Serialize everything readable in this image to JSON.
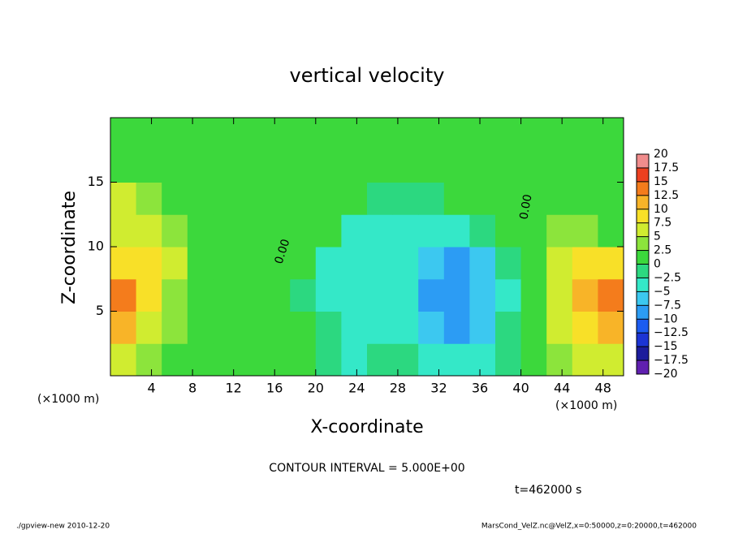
{
  "chart_data": {
    "type": "heatmap",
    "title": "vertical velocity",
    "x_label": "X-coordinate",
    "y_label": "Z-coordinate",
    "x_unit": "(×1000 m)",
    "contour_label": "0.00",
    "contour_interval": "CONTOUR INTERVAL = 5.000E+00",
    "time_label": "t=462000 s",
    "footer_left": "./gpview-new  2010-12-20",
    "footer_right": "MarsCond_VelZ.nc@VelZ,x=0:50000,z=0:20000,t=462000",
    "xlim": [
      0,
      50
    ],
    "ylim": [
      0,
      20
    ],
    "xticks": [
      4,
      8,
      12,
      16,
      20,
      24,
      28,
      32,
      36,
      40,
      44,
      48
    ],
    "yticks": [
      5,
      10,
      15
    ],
    "x": [
      1.25,
      3.75,
      6.25,
      8.75,
      11.25,
      13.75,
      16.25,
      18.75,
      21.25,
      23.75,
      26.25,
      28.75,
      31.25,
      33.75,
      36.25,
      38.75,
      41.25,
      43.75,
      46.25,
      48.75
    ],
    "y": [
      1.25,
      3.75,
      6.25,
      8.75,
      11.25,
      13.75,
      16.25,
      18.75
    ],
    "z": [
      [
        6,
        4,
        1,
        1,
        1,
        1,
        1,
        1,
        -1,
        -3,
        -2,
        -2,
        -4,
        -5,
        -4,
        -1,
        1,
        4,
        6,
        6
      ],
      [
        12,
        7,
        3,
        1,
        1,
        1,
        1,
        1,
        -2,
        -4,
        -4,
        -5,
        -7,
        -8,
        -6,
        -2,
        1,
        5,
        9,
        12
      ],
      [
        13,
        8,
        4,
        1,
        1,
        1,
        1,
        -1,
        -3,
        -4,
        -5,
        -5,
        -8,
        -9,
        -7,
        -3,
        2,
        7,
        12,
        14
      ],
      [
        9,
        8,
        5,
        1,
        1,
        1,
        1,
        1,
        -3,
        -5,
        -4,
        -4,
        -7,
        -9,
        -6,
        -2,
        2,
        6,
        9,
        8
      ],
      [
        7,
        6,
        4,
        1,
        1,
        1,
        1,
        1,
        1,
        -3,
        -3,
        -3,
        -4,
        -3,
        -2,
        1,
        1,
        3,
        3,
        2
      ],
      [
        5,
        4,
        2,
        1,
        1,
        1,
        1,
        1,
        1,
        1,
        -2,
        -2,
        -1,
        1,
        1,
        1,
        1,
        1,
        1,
        1
      ],
      [
        1,
        1,
        1,
        1,
        1,
        1,
        1,
        1,
        1,
        1,
        1,
        1,
        1,
        1,
        1,
        1,
        1,
        1,
        1,
        1
      ],
      [
        1,
        1,
        1,
        1,
        1,
        1,
        1,
        1,
        1,
        1,
        1,
        1,
        1,
        1,
        1,
        1,
        1,
        1,
        1,
        1
      ]
    ],
    "colorbar_ticks": [
      20,
      17.5,
      15,
      12.5,
      10,
      7.5,
      5,
      2.5,
      0,
      {
        "value": -2.5,
        "label": "−2.5"
      },
      {
        "value": -5,
        "label": "−5"
      },
      {
        "value": -7.5,
        "label": "−7.5"
      },
      {
        "value": -10,
        "label": "−10"
      },
      {
        "value": -12.5,
        "label": "−12.5"
      },
      {
        "value": -15,
        "label": "−15"
      },
      {
        "value": -17.5,
        "label": "−17.5"
      },
      {
        "value": -20,
        "label": "−20"
      }
    ],
    "colors": [
      "#f08c8c",
      "#ec4020",
      "#f47c1c",
      "#f8b428",
      "#f8e028",
      "#d0ec30",
      "#8ce43c",
      "#3cd83c",
      "#2cd880",
      "#34e8c8",
      "#3cc8f0",
      "#2c9cf4",
      "#1c5cf0",
      "#1c34d4",
      "#1c1c9c",
      "#6020b0"
    ]
  }
}
